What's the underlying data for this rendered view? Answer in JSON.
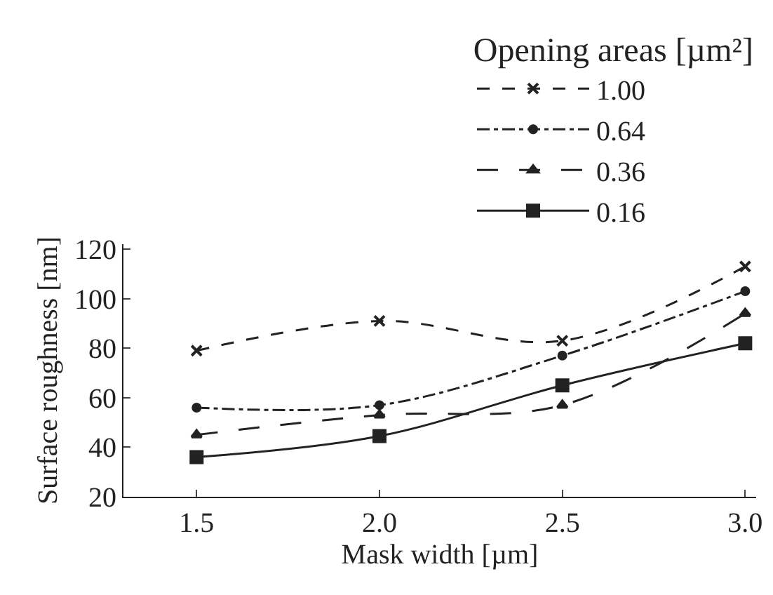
{
  "chart_data": {
    "type": "line",
    "xlabel": "Mask width [µm]",
    "ylabel": "Surface roughness [nm]",
    "legend_title": "Opening areas [µm²]",
    "x": [
      1.5,
      2.0,
      2.5,
      3.0
    ],
    "xlim": [
      1.3,
      3.03
    ],
    "xticks": [
      {
        "value": 1.5,
        "label": "1.5"
      },
      {
        "value": 2.0,
        "label": "2.0"
      },
      {
        "value": 2.5,
        "label": "2.5"
      },
      {
        "value": 3.0,
        "label": "3.0"
      }
    ],
    "ylim": [
      20,
      122
    ],
    "yticks": [
      20,
      40,
      60,
      80,
      100,
      120
    ],
    "grid": false,
    "legend": "top right",
    "series": [
      {
        "name": "1.00",
        "color": "#222222",
        "values": [
          79,
          91,
          83,
          113
        ],
        "marker": "cross",
        "line_style": "dashed"
      },
      {
        "name": "0.64",
        "color": "#222222",
        "values": [
          56,
          57,
          77,
          103
        ],
        "marker": "circle",
        "line_style": "dashdot"
      },
      {
        "name": "0.36",
        "color": "#222222",
        "values": [
          45,
          53,
          57,
          94
        ],
        "marker": "triangle",
        "line_style": "longdash"
      },
      {
        "name": "0.16",
        "color": "#222222",
        "values": [
          36,
          44.5,
          65,
          82
        ],
        "marker": "square",
        "line_style": "solid"
      }
    ]
  }
}
